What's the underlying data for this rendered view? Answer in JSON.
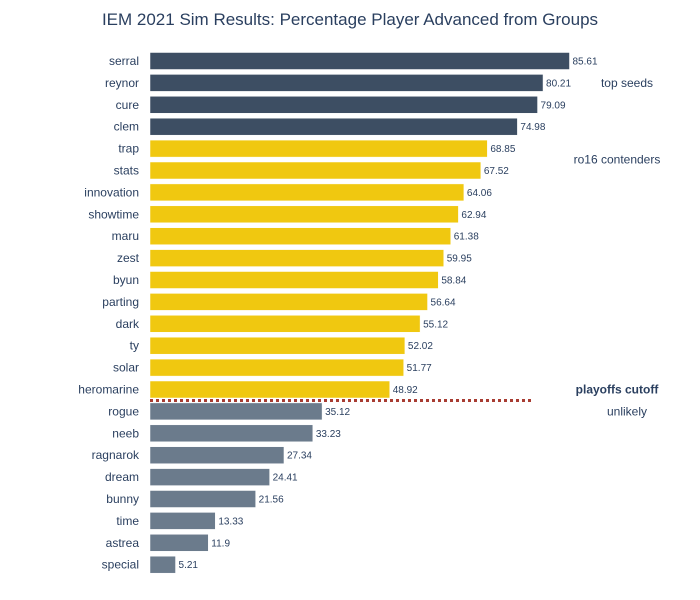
{
  "chart_data": {
    "type": "bar",
    "orientation": "horizontal",
    "title": "IEM 2021 Sim Results: Percentage Player Advanced from Groups",
    "xlabel": "",
    "ylabel": "",
    "xlim": [
      0,
      100
    ],
    "categories": [
      "serral",
      "reynor",
      "cure",
      "clem",
      "trap",
      "stats",
      "innovation",
      "showtime",
      "maru",
      "zest",
      "byun",
      "parting",
      "dark",
      "ty",
      "solar",
      "heromarine",
      "rogue",
      "neeb",
      "ragnarok",
      "dream",
      "bunny",
      "time",
      "astrea",
      "special"
    ],
    "values": [
      85.61,
      80.21,
      79.09,
      74.98,
      68.85,
      67.52,
      64.06,
      62.94,
      61.38,
      59.95,
      58.84,
      56.64,
      55.12,
      52.02,
      51.77,
      48.92,
      35.12,
      33.23,
      27.34,
      24.41,
      21.56,
      13.33,
      11.9,
      5.21
    ],
    "groups": [
      {
        "name": "top seeds",
        "start": 0,
        "end": 3,
        "color": "#3d4e63"
      },
      {
        "name": "ro16 contenders",
        "start": 4,
        "end": 15,
        "color": "#f0c810"
      },
      {
        "name": "unlikely",
        "start": 16,
        "end": 23,
        "color": "#6b7b8c"
      }
    ],
    "annotations": {
      "cutoff_label": "playoffs cutoff",
      "cutoff_after_index": 15,
      "cutoff_color": "#a83c32"
    }
  }
}
